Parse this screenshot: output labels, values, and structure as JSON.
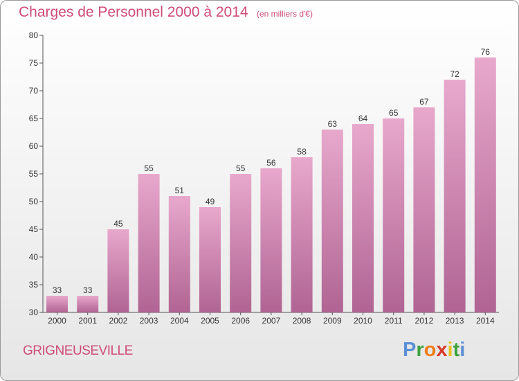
{
  "title": "Charges de Personnel 2000 à 2014",
  "subtitle": "(en milliers d'€)",
  "commune": "GRIGNEUSEVILLE",
  "logo": {
    "text": "Proxiti",
    "letters": [
      "P",
      "r",
      "o",
      "x",
      "i",
      "t",
      "i"
    ],
    "colors": [
      "#5b8fd6",
      "#3da33d",
      "#ef7d1a",
      "#d83a2a",
      "#e8c21a",
      "#3da33d",
      "#5b8fd6"
    ]
  },
  "colors": {
    "accent": "#d04a78",
    "bar_top": "#e8a8cc",
    "bar_bottom": "#b26594",
    "axis": "#555555"
  },
  "chart_data": {
    "type": "bar",
    "title": "Charges de Personnel 2000 à 2014",
    "subtitle": "(en milliers d'€)",
    "xlabel": "",
    "ylabel": "",
    "categories": [
      "2000",
      "2001",
      "2002",
      "2003",
      "2004",
      "2005",
      "2006",
      "2007",
      "2008",
      "2009",
      "2010",
      "2011",
      "2012",
      "2013",
      "2014"
    ],
    "values": [
      33,
      33,
      45,
      55,
      51,
      49,
      55,
      56,
      58,
      63,
      64,
      65,
      67,
      72,
      76
    ],
    "ylim": [
      30,
      80
    ],
    "yticks": [
      30,
      35,
      40,
      45,
      50,
      55,
      60,
      65,
      70,
      75,
      80
    ],
    "grid": false,
    "legend": "none"
  }
}
